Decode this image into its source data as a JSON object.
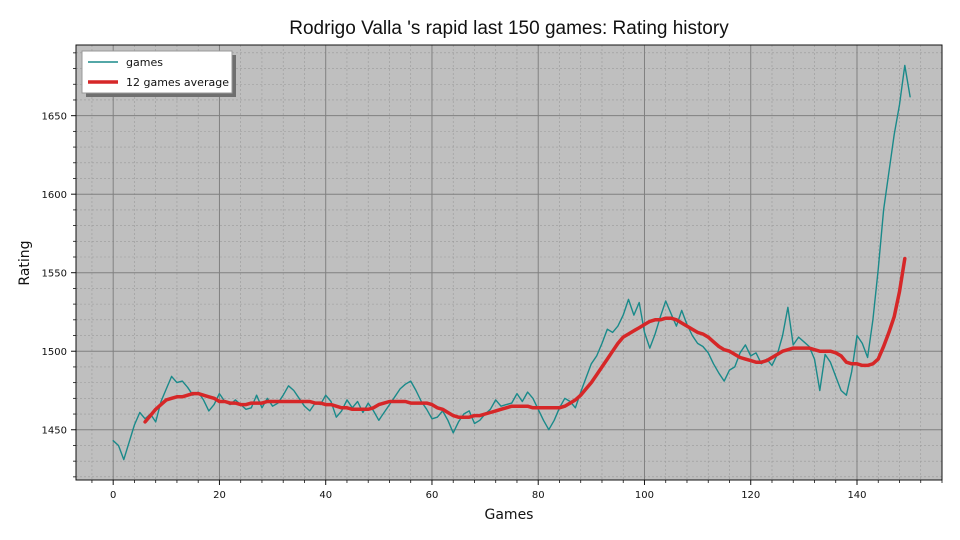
{
  "chart_data": {
    "type": "line",
    "title": "Rodrigo Valla 's rapid last 150 games: Rating history",
    "xlabel": "Games",
    "ylabel": "Rating",
    "xlim": [
      -7,
      156
    ],
    "ylim": [
      1418,
      1695
    ],
    "xticks": [
      0,
      20,
      40,
      60,
      80,
      100,
      120,
      140
    ],
    "yticks": [
      1450,
      1500,
      1550,
      1600,
      1650
    ],
    "grid": true,
    "legend_position": "top-left",
    "colors": {
      "background": "#bfbfbf",
      "games": "#1a8a8a",
      "average": "#d62728",
      "grid_major": "#808080",
      "grid_minor": "#9a9a9a"
    },
    "series": [
      {
        "name": "games",
        "x_start": 0,
        "values": [
          1443,
          1440,
          1431,
          1442,
          1453,
          1461,
          1457,
          1460,
          1455,
          1468,
          1476,
          1484,
          1480,
          1481,
          1477,
          1472,
          1474,
          1469,
          1462,
          1466,
          1473,
          1468,
          1466,
          1469,
          1466,
          1463,
          1464,
          1472,
          1464,
          1470,
          1465,
          1467,
          1472,
          1478,
          1475,
          1470,
          1465,
          1462,
          1467,
          1466,
          1472,
          1468,
          1458,
          1462,
          1469,
          1464,
          1468,
          1461,
          1467,
          1462,
          1456,
          1461,
          1466,
          1471,
          1476,
          1479,
          1481,
          1475,
          1468,
          1463,
          1457,
          1458,
          1462,
          1456,
          1448,
          1455,
          1460,
          1462,
          1454,
          1456,
          1460,
          1463,
          1469,
          1465,
          1466,
          1467,
          1473,
          1468,
          1474,
          1470,
          1463,
          1456,
          1450,
          1456,
          1464,
          1470,
          1468,
          1464,
          1474,
          1483,
          1492,
          1497,
          1505,
          1514,
          1512,
          1516,
          1523,
          1533,
          1523,
          1531,
          1512,
          1502,
          1511,
          1522,
          1532,
          1524,
          1516,
          1526,
          1517,
          1510,
          1505,
          1503,
          1499,
          1492,
          1486,
          1481,
          1488,
          1490,
          1499,
          1504,
          1497,
          1499,
          1492,
          1495,
          1491,
          1498,
          1510,
          1528,
          1504,
          1509,
          1506,
          1503,
          1495,
          1475,
          1498,
          1493,
          1484,
          1475,
          1472,
          1487,
          1510,
          1505,
          1496,
          1520,
          1552,
          1590,
          1614,
          1638,
          1657,
          1682,
          1662
        ]
      },
      {
        "name": "12 games average",
        "x_start": 6,
        "values": [
          1455,
          1459,
          1463,
          1466,
          1469,
          1470,
          1471,
          1471,
          1472,
          1473,
          1473,
          1472,
          1471,
          1470,
          1468,
          1468,
          1467,
          1467,
          1466,
          1466,
          1467,
          1467,
          1467,
          1468,
          1468,
          1468,
          1468,
          1468,
          1468,
          1468,
          1468,
          1468,
          1467,
          1467,
          1466,
          1466,
          1465,
          1464,
          1464,
          1463,
          1463,
          1463,
          1463,
          1464,
          1466,
          1467,
          1468,
          1468,
          1468,
          1468,
          1467,
          1467,
          1467,
          1467,
          1466,
          1464,
          1463,
          1461,
          1459,
          1458,
          1458,
          1458,
          1459,
          1459,
          1460,
          1461,
          1462,
          1463,
          1464,
          1465,
          1465,
          1465,
          1465,
          1464,
          1464,
          1464,
          1464,
          1464,
          1464,
          1465,
          1467,
          1469,
          1472,
          1476,
          1480,
          1485,
          1490,
          1495,
          1500,
          1505,
          1509,
          1511,
          1513,
          1515,
          1517,
          1519,
          1520,
          1520,
          1521,
          1521,
          1520,
          1518,
          1516,
          1514,
          1512,
          1511,
          1509,
          1506,
          1503,
          1501,
          1500,
          1498,
          1496,
          1495,
          1494,
          1493,
          1493,
          1494,
          1496,
          1498,
          1500,
          1501,
          1502,
          1502,
          1502,
          1502,
          1501,
          1500,
          1500,
          1500,
          1499,
          1497,
          1493,
          1492,
          1492,
          1491,
          1491,
          1492,
          1495,
          1503,
          1512,
          1522,
          1538,
          1559
        ]
      }
    ]
  }
}
